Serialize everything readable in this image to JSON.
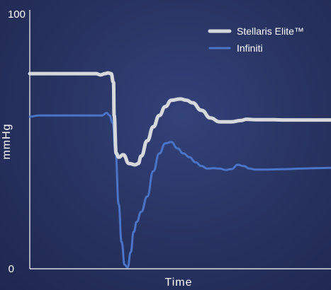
{
  "chart_data": {
    "type": "line",
    "title": "",
    "xlabel": "Time",
    "ylabel": "mmHg",
    "ylim": [
      0,
      100
    ],
    "yticks": [
      "0",
      "100"
    ],
    "grid": false,
    "legend_position": "top-right",
    "series": [
      {
        "name": "Stellaris Elite™",
        "color": "#d6d8dc",
        "x": [
          0,
          6,
          15,
          22,
          23.5,
          25,
          26,
          27,
          27.8,
          28,
          28.7,
          29.5,
          31,
          33,
          35,
          36,
          37,
          39,
          41,
          43,
          45,
          47,
          50,
          52,
          54,
          57,
          60,
          63,
          67,
          70,
          72,
          75,
          78,
          81,
          85,
          90,
          95,
          100
        ],
        "values": [
          76.5,
          76.5,
          76.5,
          76.5,
          76,
          76.5,
          76.8,
          76.5,
          73,
          60,
          45,
          43.5,
          44.5,
          41,
          40.5,
          41,
          44,
          50,
          55.5,
          60,
          63.5,
          66,
          66.5,
          66,
          65,
          62,
          59,
          57.5,
          57.5,
          58,
          58.5,
          58.3,
          58.3,
          58.3,
          58.2,
          58.2,
          58.2,
          58.2
        ]
      },
      {
        "name": "Infiniti",
        "color": "#4a74c8",
        "x": [
          0,
          3,
          10,
          20,
          24,
          25.5,
          26.5,
          27.5,
          28.5,
          29.5,
          30.5,
          31.5,
          32.5,
          33.5,
          34.5,
          35.5,
          37,
          39,
          41,
          43,
          45,
          47,
          49,
          51,
          53,
          55,
          57,
          59,
          61,
          63,
          65,
          67,
          69,
          71,
          73,
          75,
          78,
          81,
          85,
          90,
          95,
          100
        ],
        "values": [
          59.5,
          60,
          60,
          60,
          60,
          61,
          60,
          57,
          45,
          25,
          10,
          1,
          0,
          6,
          14,
          18,
          22,
          28,
          38,
          45,
          49,
          49.5,
          47,
          45,
          43.5,
          41.5,
          40,
          39,
          39.2,
          39,
          38.5,
          38.8,
          40.5,
          40,
          39,
          38.6,
          38.6,
          38.7,
          38.8,
          39,
          39.2,
          39.3
        ]
      }
    ]
  }
}
